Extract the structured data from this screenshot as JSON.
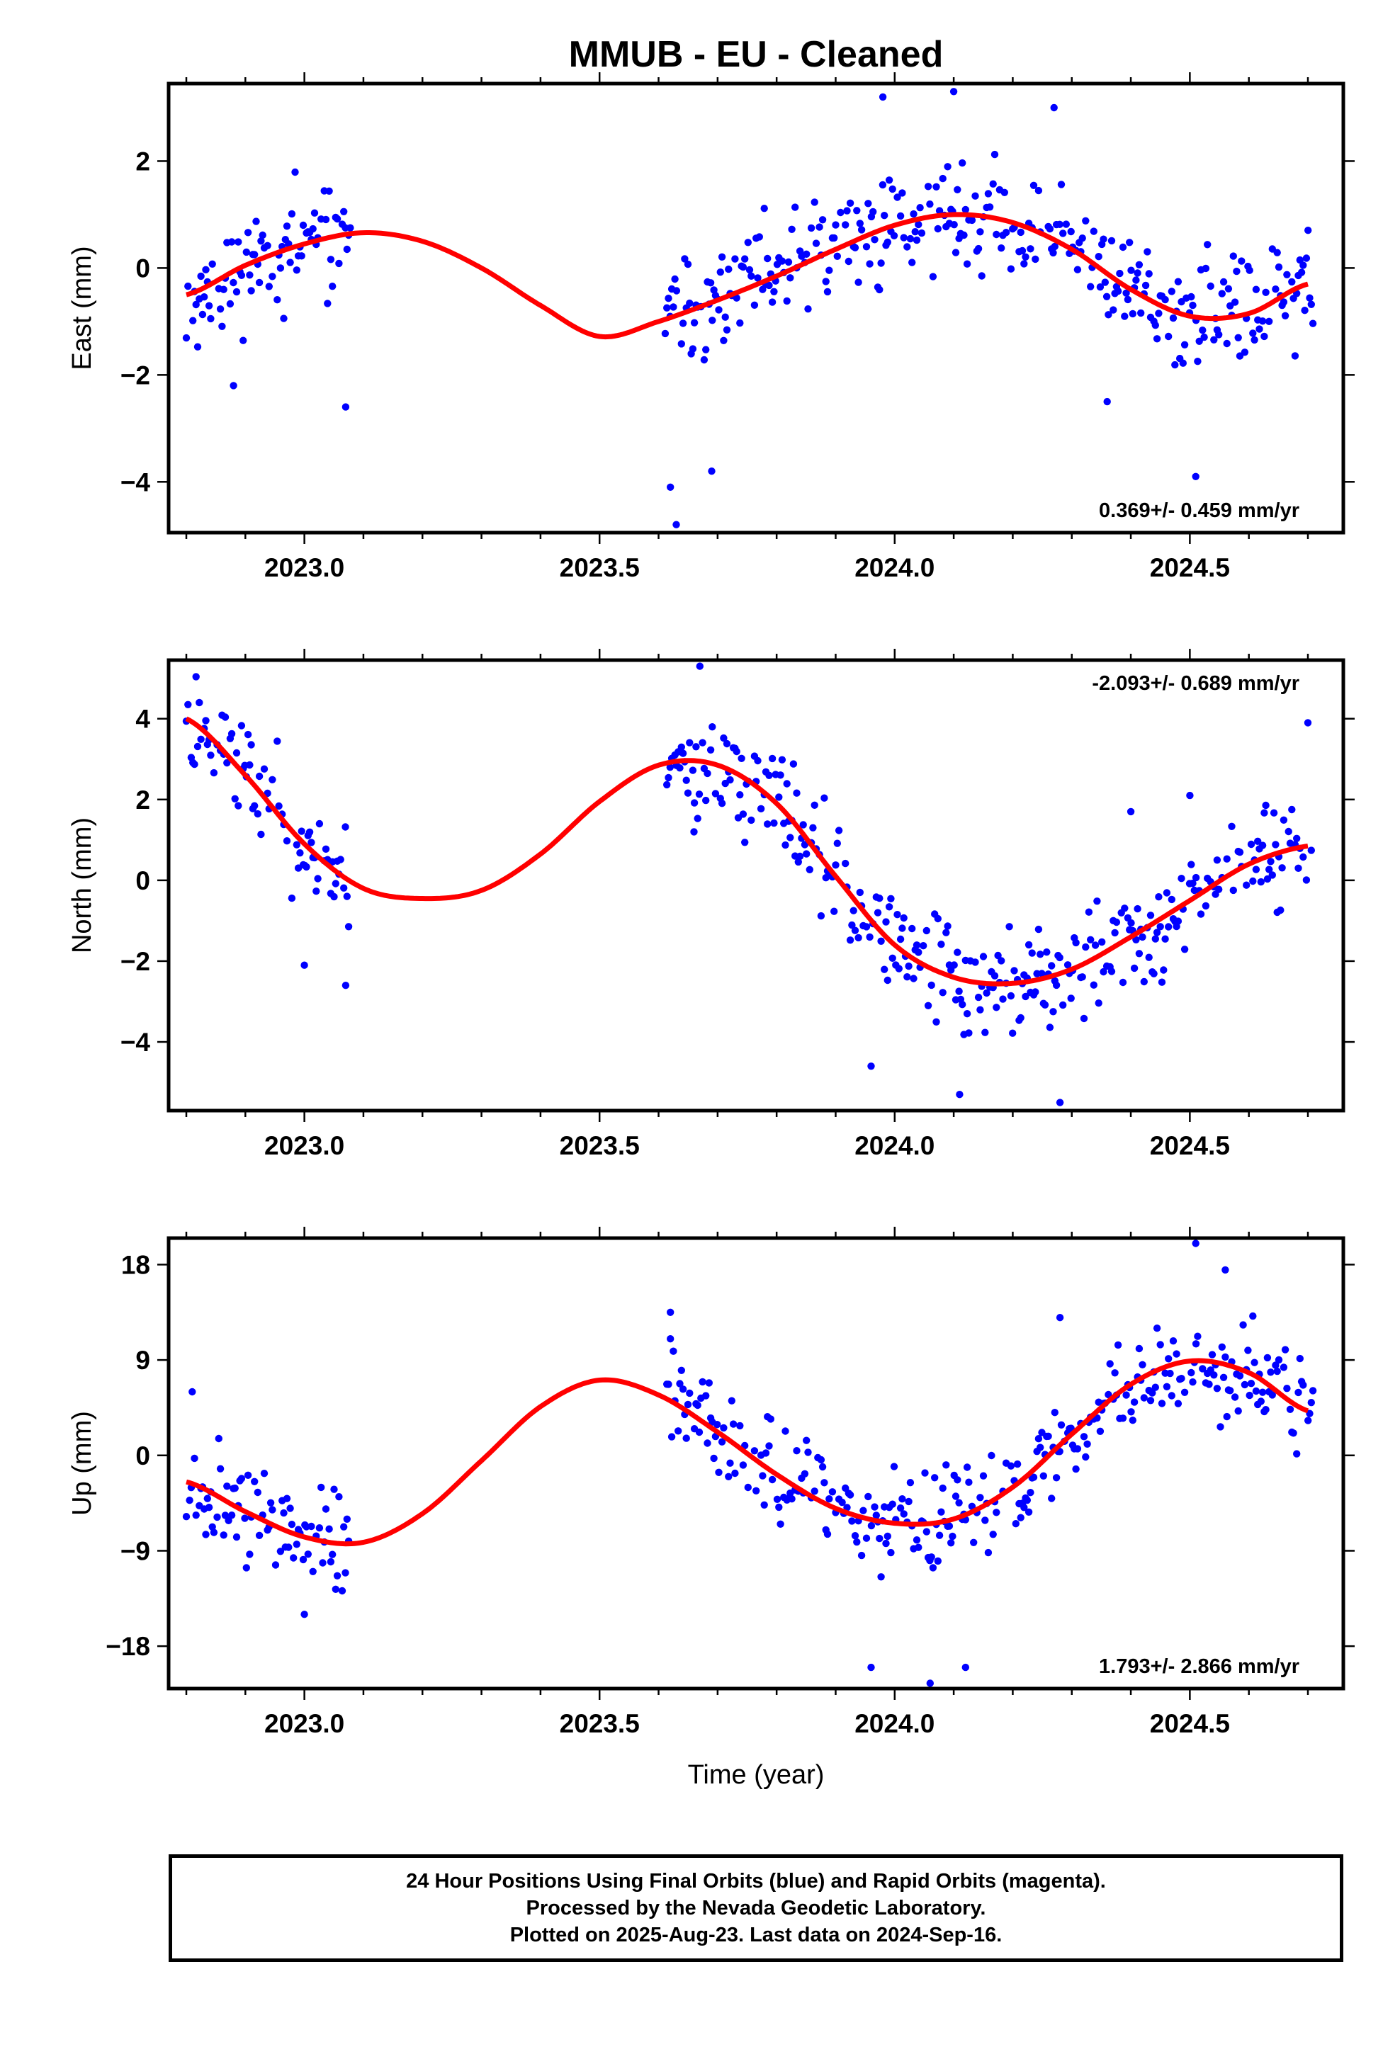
{
  "title": "MMUB  - EU - Cleaned",
  "x_axis": {
    "ticks": [
      "2023.0",
      "2023.5",
      "2024.0",
      "2024.5"
    ],
    "tick_values": [
      2023.0,
      2023.5,
      2024.0,
      2024.5
    ],
    "range": [
      2022.77,
      2024.76
    ],
    "label": "Time (year)"
  },
  "colors": {
    "fit": "#ff0000",
    "final_orbits": "#0000ff",
    "rapid_orbits": "#ff00ff",
    "frame": "#000000"
  },
  "chart_data": [
    {
      "type": "scatter",
      "name": "east",
      "ylabel": "East (mm)",
      "yticks": [
        2,
        0,
        -2,
        -4
      ],
      "ytick_labels": [
        "2",
        "0",
        "−2",
        "−4"
      ],
      "ylim": [
        -4.95,
        3.45
      ],
      "rate_label": "0.369+/- 0.459 mm/yr",
      "rate_position": "bottom-right",
      "gaps": [
        [
          2023.08,
          2023.61
        ]
      ],
      "fit": {
        "x": [
          2022.8,
          2022.9,
          2023.0,
          2023.1,
          2023.2,
          2023.3,
          2023.4,
          2023.5,
          2023.6,
          2023.7,
          2023.8,
          2023.9,
          2024.0,
          2024.1,
          2024.2,
          2024.3,
          2024.4,
          2024.5,
          2024.6,
          2024.7
        ],
        "y": [
          -0.5,
          0.05,
          0.45,
          0.66,
          0.5,
          0.0,
          -0.7,
          -1.28,
          -1.0,
          -0.6,
          -0.15,
          0.35,
          0.8,
          1.0,
          0.85,
          0.35,
          -0.4,
          -0.9,
          -0.85,
          -0.3
        ]
      },
      "points": {
        "seed": 11,
        "spread": 0.75,
        "outliers": [
          [
            2023.62,
            -4.1
          ],
          [
            2023.63,
            -4.8
          ],
          [
            2023.69,
            -3.8
          ],
          [
            2024.51,
            -3.9
          ],
          [
            2023.07,
            -2.6
          ],
          [
            2022.88,
            -2.2
          ],
          [
            2023.98,
            3.2
          ],
          [
            2024.1,
            3.3
          ],
          [
            2024.27,
            3.0
          ],
          [
            2024.36,
            -2.5
          ]
        ]
      }
    },
    {
      "type": "scatter",
      "name": "north",
      "ylabel": "North (mm)",
      "yticks": [
        4,
        2,
        0,
        -2,
        -4
      ],
      "ytick_labels": [
        "4",
        "2",
        "0",
        "−2",
        "−4"
      ],
      "ylim": [
        -5.7,
        5.45
      ],
      "rate_label": "-2.093+/- 0.689 mm/yr",
      "rate_position": "top-right",
      "gaps": [
        [
          2023.08,
          2023.61
        ]
      ],
      "fit": {
        "x": [
          2022.8,
          2022.9,
          2023.0,
          2023.1,
          2023.2,
          2023.3,
          2023.4,
          2023.5,
          2023.6,
          2023.7,
          2023.8,
          2023.9,
          2024.0,
          2024.1,
          2024.2,
          2024.3,
          2024.4,
          2024.5,
          2024.6,
          2024.7
        ],
        "y": [
          4.0,
          2.6,
          0.9,
          -0.2,
          -0.45,
          -0.25,
          0.65,
          1.95,
          2.85,
          2.85,
          1.9,
          0.1,
          -1.6,
          -2.4,
          -2.55,
          -2.2,
          -1.4,
          -0.5,
          0.4,
          0.85
        ]
      },
      "points": {
        "seed": 23,
        "spread": 0.95,
        "outliers": [
          [
            2023.67,
            5.3
          ],
          [
            2023.0,
            -2.1
          ],
          [
            2023.07,
            -2.6
          ],
          [
            2023.96,
            -4.6
          ],
          [
            2024.11,
            -5.3
          ],
          [
            2024.28,
            -5.5
          ],
          [
            2024.5,
            2.1
          ],
          [
            2024.4,
            1.7
          ],
          [
            2023.66,
            1.2
          ],
          [
            2024.7,
            3.9
          ]
        ]
      }
    },
    {
      "type": "scatter",
      "name": "up",
      "ylabel": "Up (mm)",
      "yticks": [
        18,
        9,
        0,
        -9,
        -18
      ],
      "ytick_labels": [
        "18",
        "9",
        "0",
        "−9",
        "−18"
      ],
      "ylim": [
        -22,
        20.5
      ],
      "rate_label": "1.793+/- 2.866 mm/yr",
      "rate_position": "bottom-right",
      "gaps": [
        [
          2023.08,
          2023.61
        ]
      ],
      "fit": {
        "x": [
          2022.8,
          2022.9,
          2023.0,
          2023.1,
          2023.2,
          2023.3,
          2023.4,
          2023.5,
          2023.6,
          2023.7,
          2023.8,
          2023.9,
          2024.0,
          2024.1,
          2024.2,
          2024.3,
          2024.4,
          2024.5,
          2024.6,
          2024.7
        ],
        "y": [
          -2.5,
          -5.3,
          -7.7,
          -8.2,
          -5.5,
          -0.5,
          4.6,
          7.1,
          5.7,
          2.2,
          -1.8,
          -5.0,
          -6.4,
          -6.0,
          -3.0,
          2.0,
          6.7,
          8.9,
          7.8,
          4.2
        ]
      },
      "points": {
        "seed": 37,
        "spread": 3.6,
        "outliers": [
          [
            2023.62,
            13.5
          ],
          [
            2023.62,
            11.0
          ],
          [
            2024.51,
            20.0
          ],
          [
            2024.56,
            17.5
          ],
          [
            2024.06,
            -21.5
          ],
          [
            2023.96,
            -20.0
          ],
          [
            2024.12,
            -20.0
          ],
          [
            2023.0,
            -15.0
          ],
          [
            2024.28,
            13.0
          ],
          [
            2022.81,
            6.0
          ]
        ]
      }
    }
  ],
  "caption": {
    "line1": "24 Hour Positions Using Final Orbits (blue) and Rapid Orbits (magenta).",
    "line2": "Processed by the Nevada Geodetic Laboratory.",
    "line3": "Plotted on 2025-Aug-23. Last data on 2024-Sep-16."
  }
}
